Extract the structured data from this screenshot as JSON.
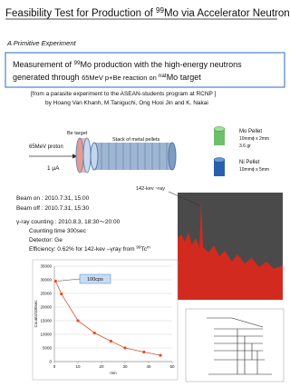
{
  "header": {
    "title_parts": [
      "Feasibility Test for Production of ",
      "99",
      "Mo via Accelerator Neutrons"
    ],
    "subtitle": "A Primitive Experiment"
  },
  "summary": {
    "parts": [
      "Measurement of ",
      "99",
      "Mo production with the high-energy neutrons",
      "generated through ",
      "65MeV p+Be reaction on ",
      "nat",
      "Mo target"
    ]
  },
  "source": {
    "note": "[from a parasite experiment to the  ASEAN-students program at RCNP ]",
    "authors": "by Hoang Van Khanh, M.Taniguchi, Ong Hooi Jin and K. Nakai"
  },
  "setup": {
    "be_target": "Be target",
    "stack": "Stack of metal pellets",
    "proton": "65MeV proton",
    "current": "1 μA",
    "mo_pellet": [
      "Mo Pellet",
      "10mmϕ x 2mm",
      "3.6 gr"
    ],
    "ni_pellet": [
      "Ni Pellet",
      "10mmϕ x 5mm"
    ]
  },
  "spectrum": {
    "annotation": "142-kev ~ray"
  },
  "conditions": {
    "beam_on": "Beam on :    2010.7.31, 15:00",
    "beam_off": "Beam off :    2010.7.31, 15:30",
    "counting": "γ-ray  counting : 2010.8.3, 18:30～20:00",
    "time": "Counting time 300sec",
    "detector": "Detector: Ge",
    "efficiency_parts": [
      "Efficiency:   0.62%  for 142-kev –γray from ",
      "99",
      "Tc",
      "m"
    ]
  },
  "chart_data": {
    "type": "line",
    "x_label": "min",
    "y_label": "Counts/100sec",
    "annotation": "100cps",
    "x": [
      0.5,
      3,
      10,
      17,
      24,
      30,
      38,
      45
    ],
    "series": [
      {
        "name": "counts",
        "color": "#e0502e",
        "values": [
          29500,
          24800,
          15000,
          10500,
          7500,
          5000,
          3500,
          2300
        ]
      }
    ],
    "xlim": [
      0,
      50
    ],
    "xticks": [
      0,
      10,
      20,
      30,
      40,
      50
    ],
    "ylim": [
      0,
      35000
    ],
    "yticks": [
      0,
      5000,
      10000,
      15000,
      20000,
      25000,
      30000,
      35000
    ],
    "grid": true
  }
}
